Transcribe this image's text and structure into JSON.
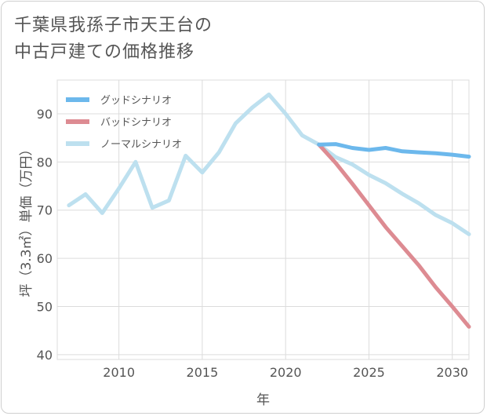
{
  "chart_data": {
    "type": "line",
    "title_lines": [
      "千葉県我孫子市天王台の",
      "中古戸建ての価格推移"
    ],
    "xlabel": "年",
    "ylabel": "坪（3.3㎡）単価（万円）",
    "xlim": [
      2006.3,
      2031
    ],
    "ylim": [
      39,
      97
    ],
    "x_ticks": [
      2010,
      2015,
      2020,
      2025,
      2030
    ],
    "y_ticks": [
      40,
      50,
      60,
      70,
      80,
      90
    ],
    "grid": true,
    "legend_position": "top-left",
    "series": [
      {
        "name": "グッドシナリオ",
        "color": "#6cb8ec",
        "x": [
          2022,
          2023,
          2024,
          2025,
          2026,
          2027,
          2028,
          2029,
          2030,
          2031
        ],
        "values": [
          83.6,
          83.7,
          82.9,
          82.5,
          82.9,
          82.2,
          82.0,
          81.8,
          81.5,
          81.1
        ]
      },
      {
        "name": "バッドシナリオ",
        "color": "#dd8b92",
        "x": [
          2022,
          2023,
          2024,
          2025,
          2026,
          2027,
          2028,
          2029,
          2030,
          2031
        ],
        "values": [
          83.6,
          79.8,
          75.5,
          71.0,
          66.5,
          62.5,
          58.5,
          54.0,
          50.0,
          45.8
        ]
      },
      {
        "name": "ノーマルシナリオ",
        "color": "#bde0ef",
        "x": [
          2007,
          2008,
          2009,
          2010,
          2011,
          2012,
          2013,
          2014,
          2015,
          2016,
          2017,
          2018,
          2019,
          2020,
          2021,
          2022,
          2023,
          2024,
          2025,
          2026,
          2027,
          2028,
          2029,
          2030,
          2031
        ],
        "values": [
          71.0,
          73.3,
          69.4,
          74.5,
          80.0,
          70.5,
          72.0,
          81.3,
          77.8,
          82.0,
          88.0,
          91.3,
          94.0,
          90.0,
          85.5,
          83.6,
          81.0,
          79.5,
          77.3,
          75.6,
          73.4,
          71.4,
          69.0,
          67.3,
          65.0
        ]
      }
    ]
  }
}
